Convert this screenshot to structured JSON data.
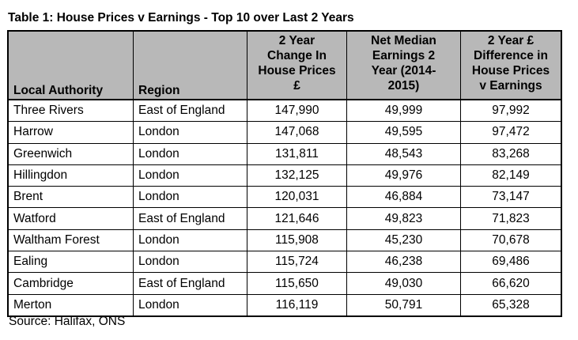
{
  "title": "Table 1: House Prices v Earnings - Top 10 over Last 2 Years",
  "headers": {
    "local_authority": "Local Authority",
    "region": "Region",
    "change_house_prices_lines": [
      "2 Year",
      "Change In",
      "House Prices",
      "£"
    ],
    "net_median_earnings_lines": [
      "Net Median",
      "Earnings 2",
      "Year (2014-",
      "2015)"
    ],
    "difference_lines": [
      "2 Year £",
      "Difference in",
      "House Prices",
      "v Earnings"
    ]
  },
  "rows": [
    {
      "local_authority": "Three Rivers",
      "region": "East of England",
      "change": "147,990",
      "earnings": "49,999",
      "difference": "97,992"
    },
    {
      "local_authority": "Harrow",
      "region": "London",
      "change": "147,068",
      "earnings": "49,595",
      "difference": "97,472"
    },
    {
      "local_authority": "Greenwich",
      "region": "London",
      "change": "131,811",
      "earnings": "48,543",
      "difference": "83,268"
    },
    {
      "local_authority": "Hillingdon",
      "region": "London",
      "change": "132,125",
      "earnings": "49,976",
      "difference": "82,149"
    },
    {
      "local_authority": "Brent",
      "region": "London",
      "change": "120,031",
      "earnings": "46,884",
      "difference": "73,147"
    },
    {
      "local_authority": "Watford",
      "region": "East of England",
      "change": "121,646",
      "earnings": "49,823",
      "difference": "71,823"
    },
    {
      "local_authority": "Waltham Forest",
      "region": "London",
      "change": "115,908",
      "earnings": "45,230",
      "difference": "70,678"
    },
    {
      "local_authority": "Ealing",
      "region": "London",
      "change": "115,724",
      "earnings": "46,238",
      "difference": "69,486"
    },
    {
      "local_authority": "Cambridge",
      "region": "East of England",
      "change": "115,650",
      "earnings": "49,030",
      "difference": "66,620"
    },
    {
      "local_authority": "Merton",
      "region": "London",
      "change": "116,119",
      "earnings": "50,791",
      "difference": "65,328"
    }
  ],
  "source": "Source: Halifax, ONS",
  "colors": {
    "header_background": "#b8b8b8",
    "border": "#000000"
  }
}
